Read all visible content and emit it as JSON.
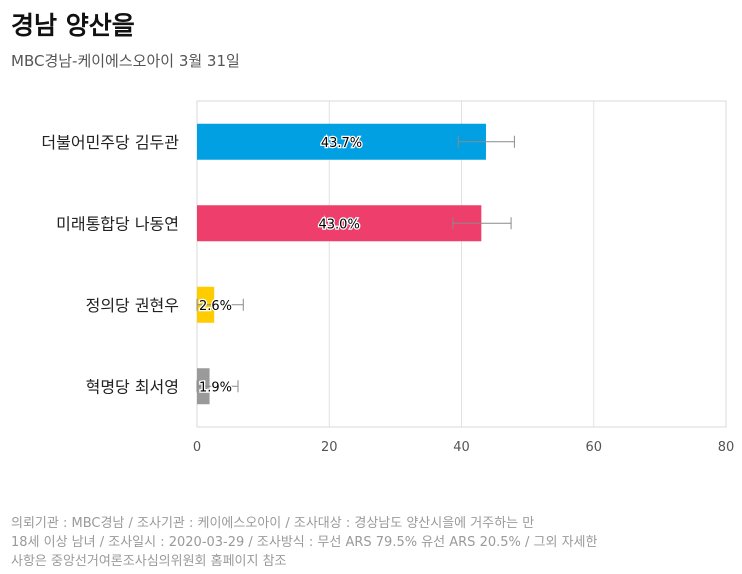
{
  "chart_data": {
    "type": "bar",
    "orientation": "horizontal",
    "title": "경남 양산을",
    "subtitle": "MBC경남-케이에스오아이 3월 31일",
    "categories": [
      "더불어민주당 김두관",
      "미래통합당 나동연",
      "정의당 권현우",
      "혁명당 최서영"
    ],
    "values": [
      43.7,
      43.0,
      2.6,
      1.9
    ],
    "value_labels": [
      "43.7%",
      "43.0%",
      "2.6%",
      "1.9%"
    ],
    "error_low": [
      39.5,
      38.7,
      0.0,
      0.0
    ],
    "error_high": [
      48.0,
      47.5,
      7.0,
      6.2
    ],
    "colors": [
      "#00A0E2",
      "#EE3F6C",
      "#FFCC00",
      "#9A9A9A"
    ],
    "xlim": [
      0,
      80
    ],
    "xticks": [
      "0",
      "20",
      "40",
      "60",
      "80"
    ],
    "grid": true
  },
  "footer": {
    "lines": [
      "의뢰기관 : MBC경남 / 조사기관 : 케이에스오아이 / 조사대상 : 경상남도 양산시을에 거주하는 만",
      "18세 이상 남녀 / 조사일시 : 2020-03-29 / 조사방식 : 무선 ARS 79.5% 유선 ARS 20.5% / 그외 자세한",
      "사항은 중앙선거여론조사심의위원회 홈페이지 참조"
    ]
  }
}
